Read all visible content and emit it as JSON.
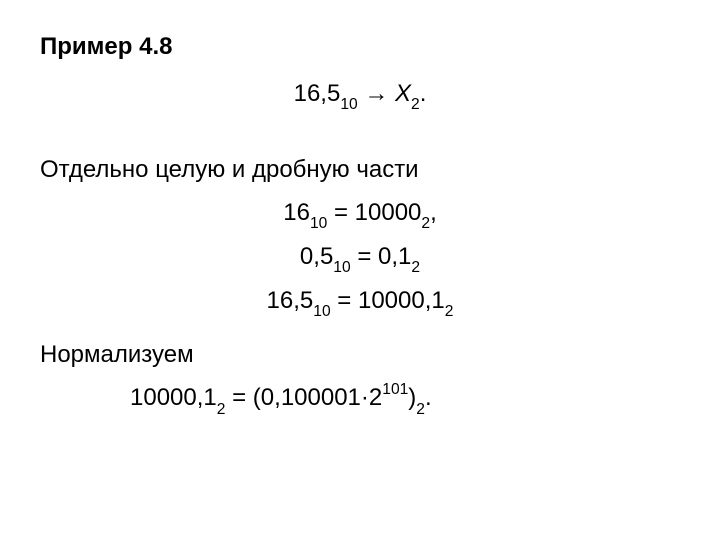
{
  "title": "Пример 4.8",
  "conv": {
    "lhs_val": "16,5",
    "lhs_sub": "10",
    "arrow": " → ",
    "rhs_var": "X",
    "rhs_sub": "2",
    "period": "."
  },
  "parts_label": "Отдельно целую и дробную части",
  "eq1": {
    "l_val": "16",
    "l_sub": "10",
    "eq": " = ",
    "r_val": "10000",
    "r_sub": "2",
    "tail": ","
  },
  "eq2": {
    "l_val": "0,5",
    "l_sub": "10",
    "eq": " = ",
    "r_val": "0,1",
    "r_sub": "2",
    "tail": ""
  },
  "eq3": {
    "l_val": "16,5",
    "l_sub": "10",
    "eq": " = ",
    "r_val": "10000,1",
    "r_sub": "2",
    "tail": ""
  },
  "norm_label": "Нормализуем",
  "norm": {
    "l_val": "10000,1",
    "l_sub": "2",
    "eq": " = (",
    "mantissa": "0,100001",
    "dot": "·",
    "base": "2",
    "exp": "101",
    "close": ")",
    "outer_sub": "2",
    "period": "."
  },
  "style": {
    "font_family": "Arial",
    "font_size_pt": 18,
    "text_color": "#000000",
    "background": "#ffffff"
  }
}
